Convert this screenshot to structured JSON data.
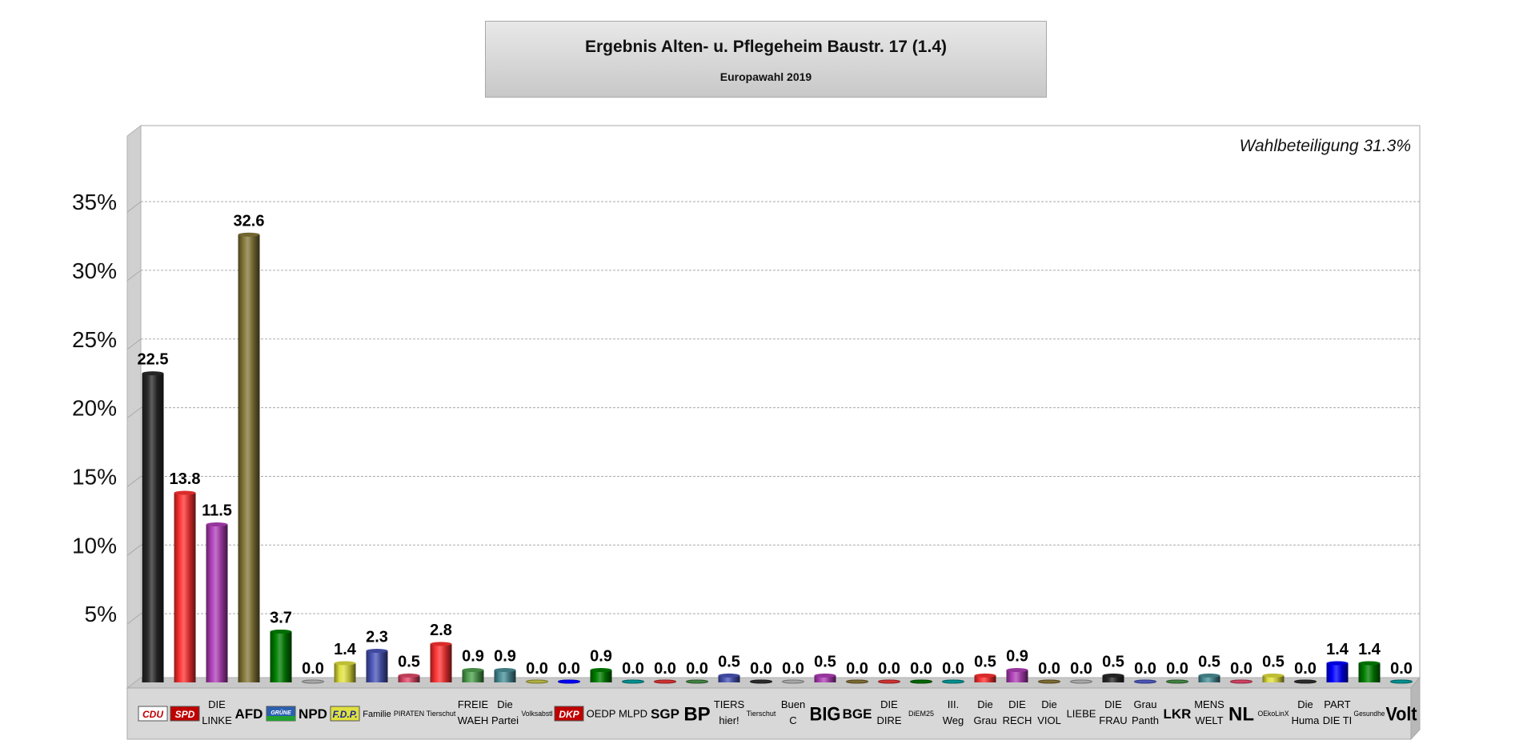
{
  "chart_data": {
    "type": "bar",
    "title": "Ergebnis Alten- u. Pflegeheim Baustr. 17 (1.4)",
    "subtitle": "Europawahl 2019",
    "annotation": "Wahlbeteiligung 31.3%",
    "ylim": [
      0,
      40
    ],
    "yticks": [
      "5%",
      "10%",
      "15%",
      "20%",
      "25%",
      "30%",
      "35%"
    ],
    "ytick_values": [
      5,
      10,
      15,
      20,
      25,
      30,
      35
    ],
    "grid": true,
    "categories": [
      "CDU",
      "SPD",
      "DIE\nLINKE",
      "AFD",
      "GRÜNE",
      "NPD",
      "F.D.P.",
      "Familie",
      "PIRATEN",
      "Tierschut",
      "FREIE\nWAEH",
      "Die\nPartei",
      "Volksabstl",
      "DKP",
      "OEDP",
      "MLPD",
      "SGP",
      "BP",
      "TIERS\nhier!",
      "Tierschut",
      "Buen\nC",
      "BIG",
      "BGE",
      "DIE\nDIRE",
      "DiEM25",
      "III.\nWeg",
      "Die\nGrau",
      "DIE\nRECH",
      "Die\nVIOL",
      "LIEBE",
      "DIE\nFRAU",
      "Grau\nPanth",
      "LKR",
      "MENS\nWELT",
      "NL",
      "OEkoLinX",
      "Die\nHuma",
      "PART\nDIE TI",
      "Gesundhe",
      "Volt"
    ],
    "values": [
      22.5,
      13.8,
      11.5,
      32.6,
      3.7,
      0.0,
      1.4,
      2.3,
      0.5,
      2.8,
      0.9,
      0.9,
      0.0,
      0.0,
      0.9,
      0.0,
      0.0,
      0.0,
      0.5,
      0.0,
      0.0,
      0.5,
      0.0,
      0.0,
      0.0,
      0.0,
      0.5,
      0.9,
      0.0,
      0.0,
      0.5,
      0.0,
      0.0,
      0.5,
      0.0,
      0.5,
      0.0,
      1.4,
      1.4,
      0.0
    ],
    "value_labels": [
      "22.5",
      "13.8",
      "11.5",
      "32.6",
      "3.7",
      "0.0",
      "1.4",
      "2.3",
      "0.5",
      "2.8",
      "0.9",
      "0.9",
      "0.0",
      "0.0",
      "0.9",
      "0.0",
      "0.0",
      "0.0",
      "0.5",
      "0.0",
      "0.0",
      "0.5",
      "0.0",
      "0.0",
      "0.0",
      "0.0",
      "0.5",
      "0.9",
      "0.0",
      "0.0",
      "0.5",
      "0.0",
      "0.0",
      "0.5",
      "0.0",
      "0.5",
      "0.0",
      "1.4",
      "1.4",
      "0.0"
    ],
    "colors": [
      "#2a2a2a",
      "#ff3333",
      "#b040b8",
      "#857838",
      "#008000",
      "#a8a8a8",
      "#e0e040",
      "#4a55b8",
      "#e04a6a",
      "#ff3333",
      "#50a050",
      "#4a9098",
      "#b0b040",
      "#0000ff",
      "#008000",
      "#009090",
      "#d03030",
      "#408040",
      "#4a55b8",
      "#2a2a2a",
      "#a8a8a8",
      "#b040b8",
      "#7a6a30",
      "#d03030",
      "#006600",
      "#009090",
      "#ff3333",
      "#b040b8",
      "#7a6a30",
      "#a8a8a8",
      "#2a2a2a",
      "#4a55b8",
      "#408040",
      "#4a9098",
      "#d04060",
      "#e0e040",
      "#2a2a2a",
      "#0000ff",
      "#008000",
      "#009090"
    ],
    "logo_categories": [
      "CDU",
      "SPD",
      "GRÜNE",
      "F.D.P.",
      "DKP"
    ]
  }
}
